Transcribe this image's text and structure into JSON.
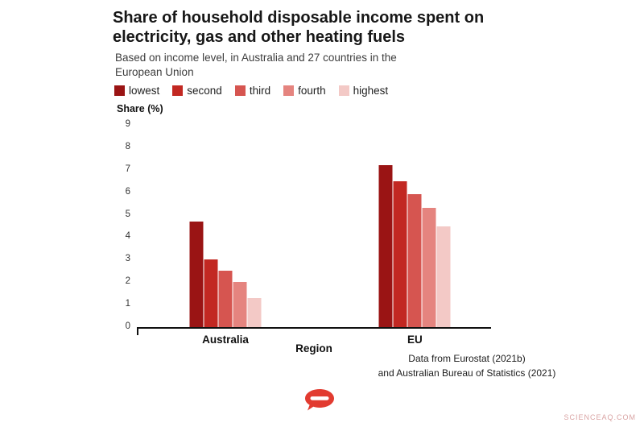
{
  "header": {
    "title": "Share of household disposable income spent on electricity, gas and other heating fuels",
    "subtitle": "Based on income level, in Australia and 27 countries in the European Union"
  },
  "chart_data": {
    "type": "bar",
    "title": "Share of household disposable income spent on electricity, gas and other heating fuels",
    "subtitle": "Based on income level, in Australia and 27 countries in the European Union",
    "xlabel": "Region",
    "ylabel": "Share (%)",
    "categories": [
      "Australia",
      "EU"
    ],
    "series": [
      {
        "name": "lowest",
        "color": "#9a1414",
        "values": [
          4.7,
          7.2
        ]
      },
      {
        "name": "second",
        "color": "#c22822",
        "values": [
          3.0,
          6.5
        ]
      },
      {
        "name": "third",
        "color": "#d65550",
        "values": [
          2.5,
          5.9
        ]
      },
      {
        "name": "fourth",
        "color": "#e5847f",
        "values": [
          2.0,
          5.3
        ]
      },
      {
        "name": "highest",
        "color": "#f3c9c6",
        "values": [
          1.3,
          4.5
        ]
      }
    ],
    "ylim": [
      0,
      9
    ],
    "yticks": [
      0,
      1,
      2,
      3,
      4,
      5,
      6,
      7,
      8,
      9
    ],
    "grid": false,
    "legend_position": "top"
  },
  "footer": {
    "line1": "Data from Eurostat (2021b)",
    "line2": "and Australian Bureau of Statistics (2021)"
  },
  "watermark": "SCIENCEAQ.COM",
  "logo_color": "#e23b30"
}
